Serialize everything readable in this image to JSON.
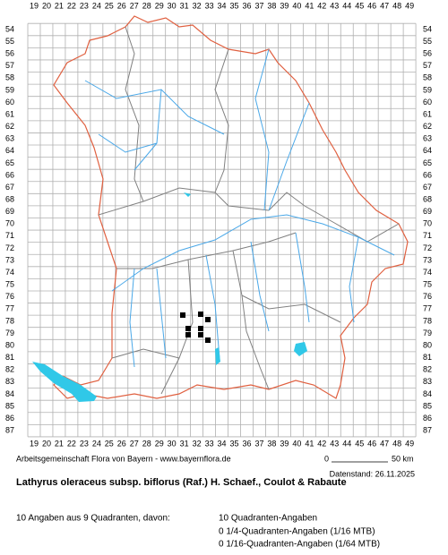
{
  "map": {
    "column_labels": [
      "19",
      "20",
      "21",
      "22",
      "23",
      "24",
      "25",
      "26",
      "27",
      "28",
      "29",
      "30",
      "31",
      "32",
      "33",
      "34",
      "35",
      "36",
      "37",
      "38",
      "39",
      "40",
      "41",
      "42",
      "43",
      "44",
      "45",
      "46",
      "47",
      "48",
      "49"
    ],
    "row_labels": [
      "54",
      "55",
      "56",
      "57",
      "58",
      "59",
      "60",
      "61",
      "62",
      "63",
      "64",
      "65",
      "66",
      "67",
      "68",
      "69",
      "70",
      "71",
      "72",
      "73",
      "74",
      "75",
      "76",
      "77",
      "78",
      "79",
      "80",
      "81",
      "82",
      "83",
      "84",
      "85",
      "86",
      "87"
    ]
  },
  "footer": {
    "credit": "Arbeitsgemeinschaft Flora von Bayern - www.bayernflora.de",
    "scale_start": "0",
    "scale_end": "50 km",
    "date": "Datenstand: 26.11.2025",
    "title": "Lathyrus oleraceus subsp. biflorus (Raf.) H. Schaef., Coulot & Rabaute",
    "summary": "10 Angaben aus 9 Quadranten, davon:",
    "counts": [
      "10 Quadranten-Angaben",
      "0 1/4-Quadranten-Angaben (1/16 MTB)",
      "0 1/16-Quadranten-Angaben (1/64 MTB)"
    ]
  }
}
